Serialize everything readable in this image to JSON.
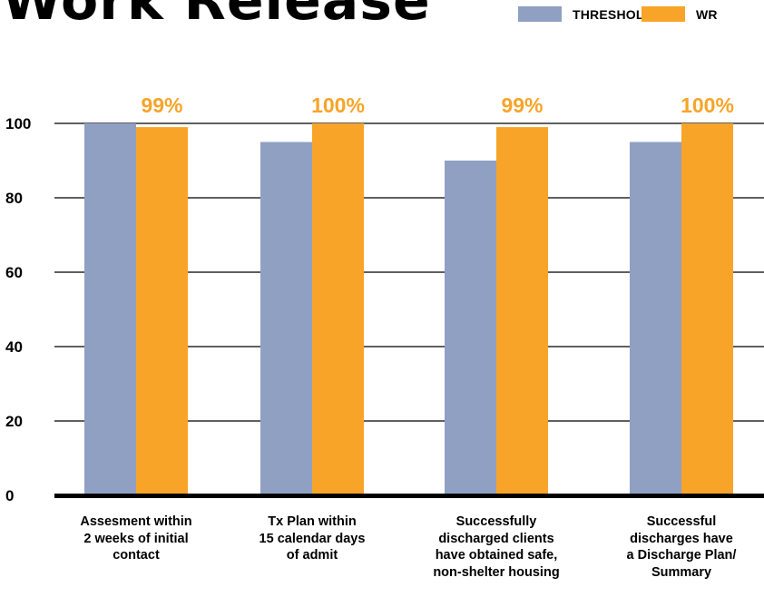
{
  "chart_data": {
    "type": "bar",
    "title": "Work Release",
    "categories": [
      "Assesment within 2 weeks of initial contact",
      "Tx Plan within 15 calendar days of admit",
      "Successfully discharged clients have obtained safe, non-shelter housing",
      "Successful discharges have a Discharge Plan/ Summary"
    ],
    "category_lines": [
      [
        "Assesment within",
        "2 weeks of initial",
        "contact"
      ],
      [
        "Tx Plan within",
        "15 calendar days",
        "of admit"
      ],
      [
        "Successfully",
        "discharged clients",
        "have obtained safe,",
        "non-shelter housing"
      ],
      [
        "Successful",
        "discharges have",
        "a Discharge Plan/",
        "Summary"
      ]
    ],
    "series": [
      {
        "name": "THRESHOLD",
        "color": "#8fa0c3",
        "values": [
          100,
          95,
          90,
          95
        ]
      },
      {
        "name": "WR",
        "color": "#f7a428",
        "values": [
          99,
          100,
          99,
          100
        ]
      }
    ],
    "data_labels": [
      "99%",
      "100%",
      "99%",
      "100%"
    ],
    "data_label_color": "#f7a428",
    "yticks": [
      0,
      20,
      40,
      60,
      80,
      100
    ],
    "ylim": [
      0,
      100
    ],
    "grid": true,
    "legend_position": "top-right"
  }
}
